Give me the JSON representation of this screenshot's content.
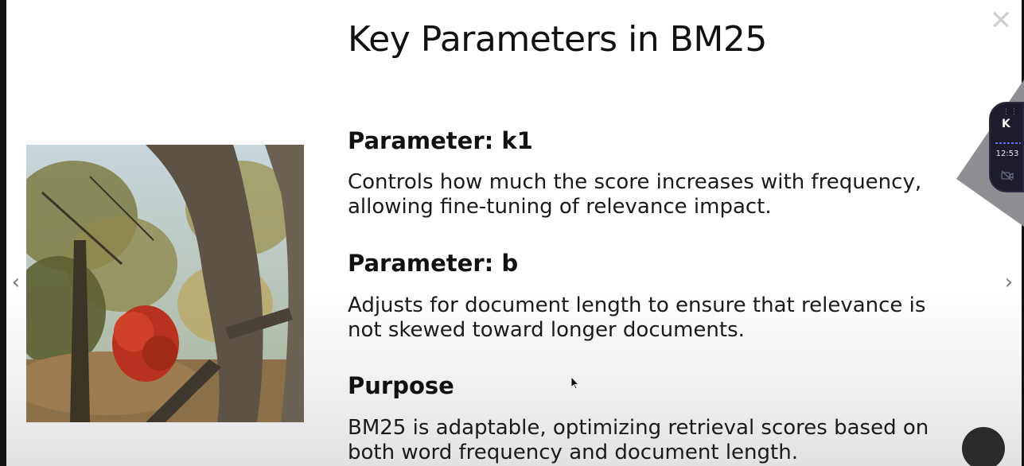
{
  "slide": {
    "title": "Key Parameters in BM25",
    "sections": [
      {
        "heading": "Parameter: k1",
        "text": "Controls how much the score increases with frequency, allowing fine-tuning of relevance impact."
      },
      {
        "heading": "Parameter: b",
        "text": "Adjusts for document length to ensure that relevance is not skewed toward longer documents."
      },
      {
        "heading": "Purpose",
        "text": "BM25 is adaptable, optimizing retrieval scores based on both word frequency and document length."
      }
    ]
  },
  "controls": {
    "close_icon": "close-icon",
    "prev_arrow": "‹",
    "next_arrow": "›"
  },
  "widget": {
    "logo": "K",
    "time": "12:53",
    "camera_icon": "camera-off-icon"
  },
  "colors": {
    "widget_bg": "#1c1c2a",
    "text": "#141414",
    "frame": "#121212"
  }
}
